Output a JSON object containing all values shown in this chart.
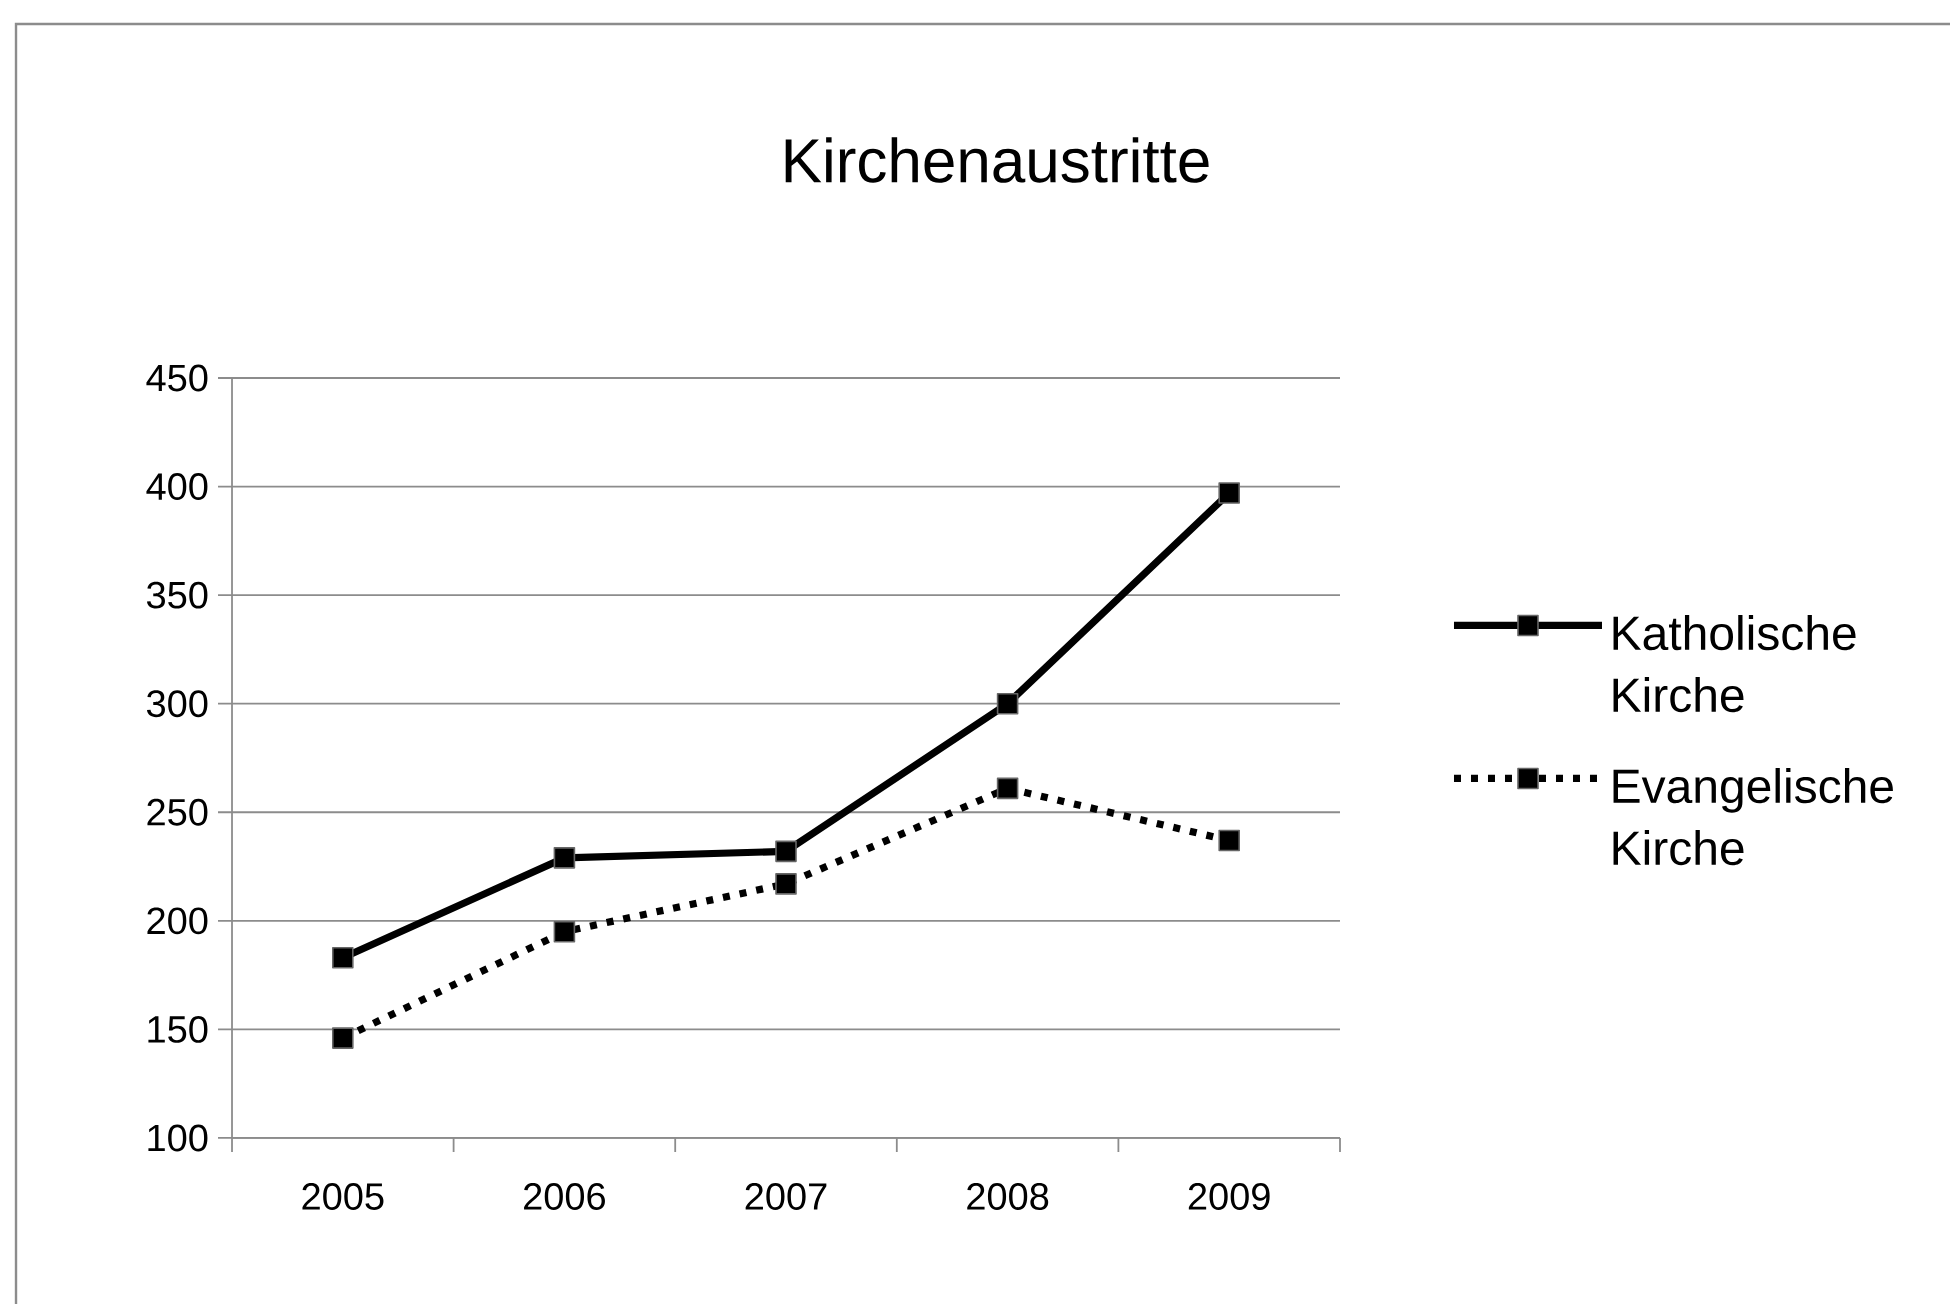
{
  "chart_data": {
    "type": "line",
    "title": "Kirchenaustritte",
    "categories": [
      "2005",
      "2006",
      "2007",
      "2008",
      "2009"
    ],
    "series": [
      {
        "name": "Katholische Kirche",
        "color": "#000000",
        "line_style": "solid",
        "values": [
          183,
          229,
          232,
          300,
          397
        ]
      },
      {
        "name": "Evangelische Kirche",
        "color": "#000000",
        "line_style": "dotted",
        "values": [
          146,
          195,
          217,
          261,
          237
        ]
      }
    ],
    "ylim": [
      100,
      450
    ],
    "yticks": [
      100,
      150,
      200,
      250,
      300,
      350,
      400,
      450
    ],
    "grid": "y",
    "legend": "right",
    "marker": "square"
  }
}
